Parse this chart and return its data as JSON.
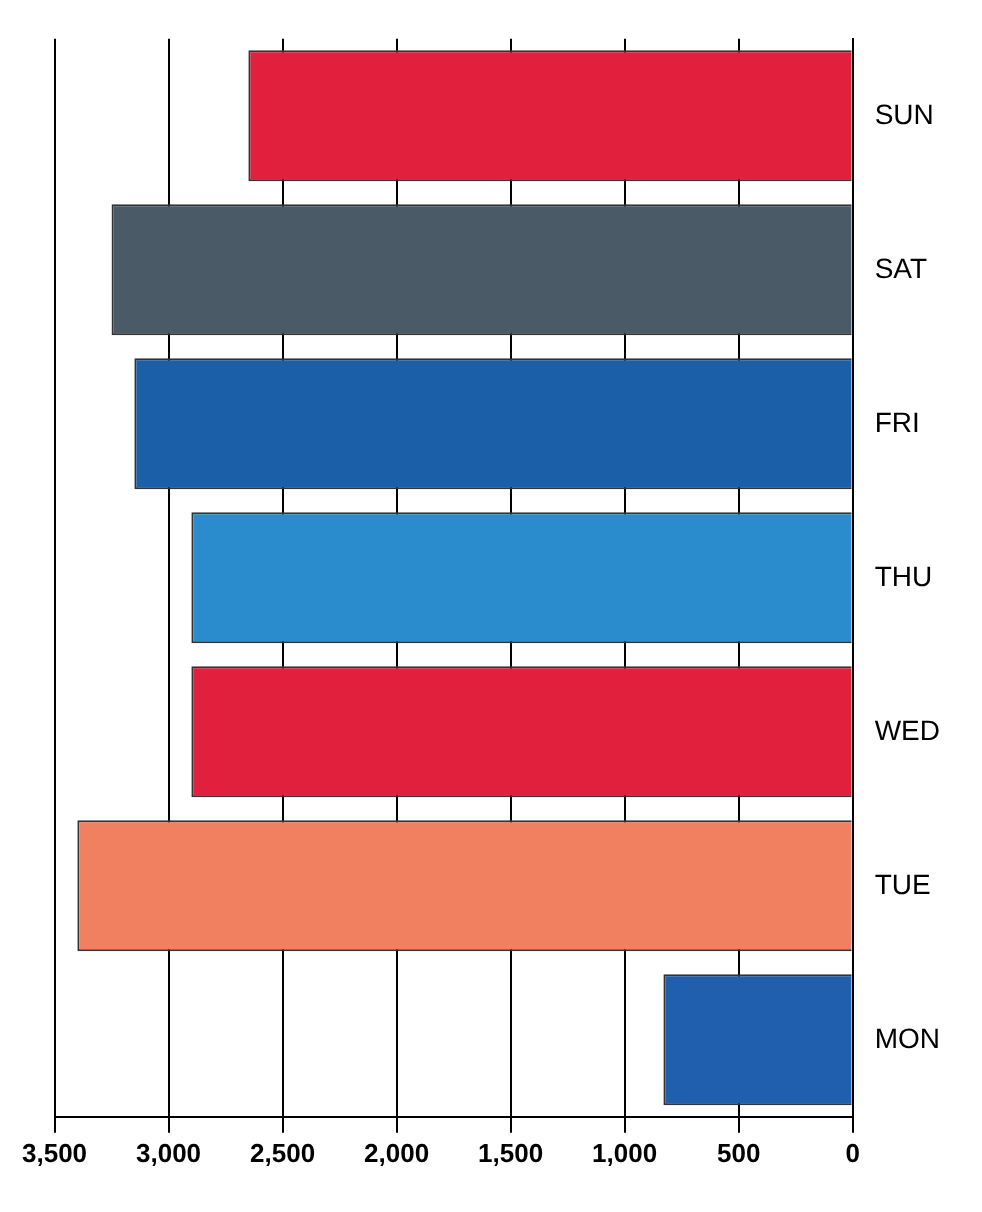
{
  "chart_data": {
    "type": "bar",
    "orientation": "horizontal",
    "categories": [
      "SUN",
      "SAT",
      "FRI",
      "THU",
      "WED",
      "TUE",
      "MON"
    ],
    "values": [
      2650,
      3250,
      3150,
      2900,
      2900,
      3400,
      830
    ],
    "colors": [
      "#e0203c",
      "#4a5a66",
      "#1a5fa8",
      "#2a8ccc",
      "#e0203c",
      "#f08060",
      "#1f5fae"
    ],
    "xlim": [
      3500,
      0
    ],
    "xticks": [
      {
        "value": 3500,
        "label": "3,500"
      },
      {
        "value": 3000,
        "label": "3,000"
      },
      {
        "value": 2500,
        "label": "2,500"
      },
      {
        "value": 2000,
        "label": "2,000"
      },
      {
        "value": 1500,
        "label": "1,500"
      },
      {
        "value": 1000,
        "label": "1,000"
      },
      500,
      0
    ],
    "grid": "x",
    "legend": false
  }
}
